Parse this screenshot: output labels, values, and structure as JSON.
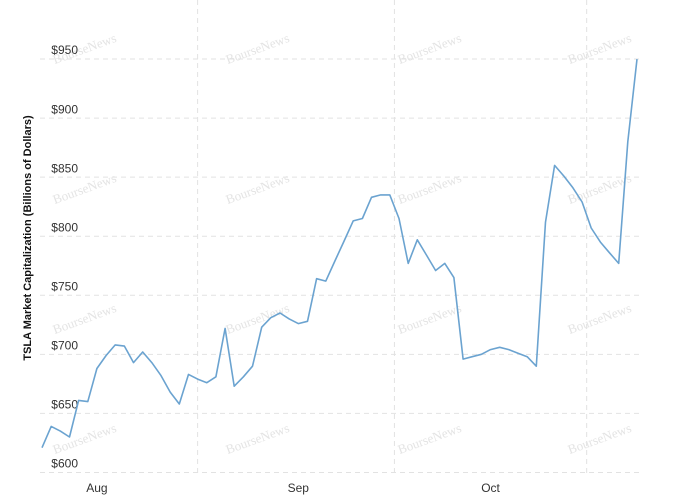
{
  "chart_data": {
    "type": "line",
    "y_label": "TSLA Market Capitalization (Billions of Dollars)",
    "watermark": "BourseNews",
    "categories": [
      null,
      null,
      null,
      null,
      null,
      null,
      "Aug",
      null,
      null,
      null,
      null,
      null,
      null,
      null,
      null,
      null,
      null,
      null,
      null,
      null,
      null,
      null,
      null,
      null,
      null,
      null,
      null,
      null,
      "Sep",
      null,
      null,
      null,
      null,
      null,
      null,
      null,
      null,
      null,
      null,
      null,
      null,
      null,
      null,
      null,
      null,
      null,
      null,
      null,
      null,
      "Oct",
      null,
      null,
      null,
      null,
      null,
      null,
      null,
      null,
      null,
      null,
      null,
      null,
      null,
      null,
      null,
      null
    ],
    "series": [
      {
        "name": "TSLA",
        "color": "#6ba3d0",
        "values": [
          621,
          639,
          635,
          630,
          661,
          660,
          688,
          699,
          708,
          707,
          693,
          702,
          693,
          682,
          668,
          658,
          683,
          679,
          676,
          681,
          722,
          673,
          681,
          690,
          723,
          731,
          735,
          730,
          726,
          728,
          764,
          762,
          779,
          796,
          813,
          815,
          833,
          835,
          835,
          815,
          777,
          797,
          784,
          771,
          777,
          765,
          696,
          698,
          700,
          704,
          706,
          704,
          701,
          698,
          690,
          812,
          860,
          851,
          841,
          829,
          807,
          795,
          786,
          777,
          880,
          950
        ]
      }
    ],
    "ylim": [
      597,
      1000
    ],
    "yticks": [
      {
        "value": 600,
        "label": "$600"
      },
      {
        "value": 650,
        "label": "$650"
      },
      {
        "value": 700,
        "label": "$700"
      },
      {
        "value": 750,
        "label": "$750"
      },
      {
        "value": 800,
        "label": "$800"
      },
      {
        "value": 850,
        "label": "$850"
      },
      {
        "value": 900,
        "label": "$900"
      },
      {
        "value": 950,
        "label": "$950"
      }
    ],
    "grid": true
  }
}
